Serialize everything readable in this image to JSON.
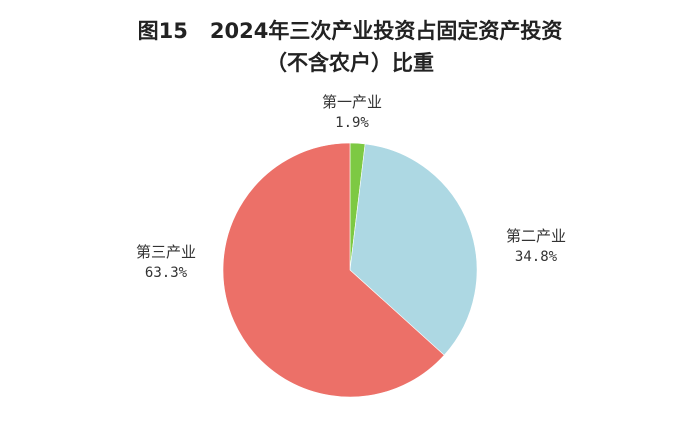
{
  "figure": {
    "number": "图15",
    "title_line1": "2024年三次产业投资占固定资产投资",
    "title_line2": "（不含农户）比重"
  },
  "chart_data": {
    "type": "pie",
    "categories": [
      "第一产业",
      "第二产业",
      "第三产业"
    ],
    "values": [
      1.9,
      34.8,
      63.3
    ],
    "value_labels": [
      "1.9%",
      "34.8%",
      "63.3%"
    ],
    "colors": [
      "#7dc943",
      "#add8e3",
      "#ec7068"
    ],
    "start": "12 o'clock",
    "direction": "clockwise"
  }
}
